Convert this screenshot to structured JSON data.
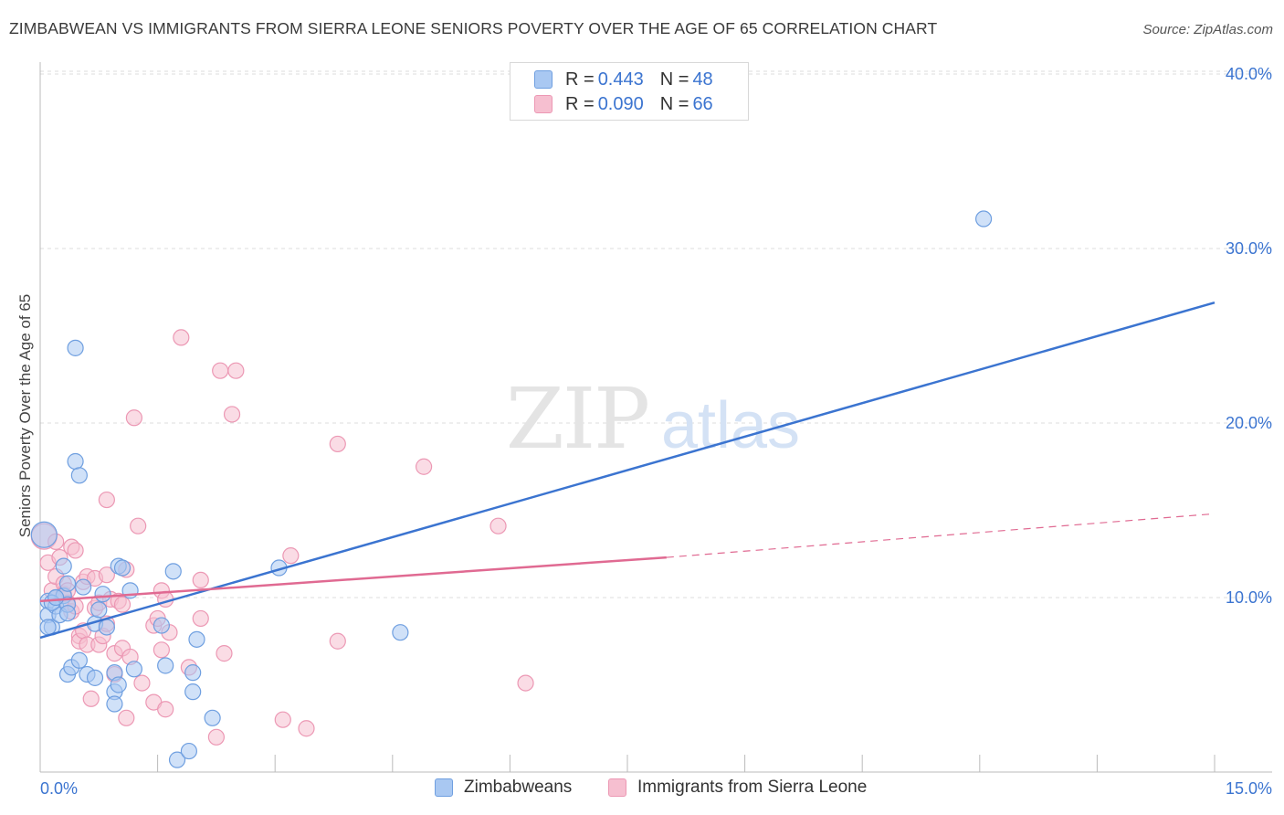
{
  "header": {
    "title": "ZIMBABWEAN VS IMMIGRANTS FROM SIERRA LEONE SENIORS POVERTY OVER THE AGE OF 65 CORRELATION CHART",
    "source": "Source: ZipAtlas.com"
  },
  "watermark": {
    "zip": "ZIP",
    "atlas": "atlas"
  },
  "colors": {
    "blue": "#3b74d0",
    "blue_fill": "#a9c8f2",
    "blue_stroke": "#6f9fe0",
    "pink": "#e06a92",
    "pink_fill": "#f6bfd0",
    "pink_stroke": "#ec98b4",
    "grid": "#dcdcdc",
    "axis_label": "#3b74d0"
  },
  "legend": {
    "rows": [
      {
        "r_label": "R =",
        "r_value": "0.443",
        "n_label": "N =",
        "n_value": "48"
      },
      {
        "r_label": "R =",
        "r_value": "0.090",
        "n_label": "N =",
        "n_value": "66"
      }
    ],
    "bottom": [
      "Zimbabweans",
      "Immigrants from Sierra Leone"
    ]
  },
  "chart_data": {
    "type": "scatter",
    "title": "ZIMBABWEAN VS IMMIGRANTS FROM SIERRA LEONE SENIORS POVERTY OVER THE AGE OF 65 CORRELATION CHART",
    "xlabel": "",
    "ylabel": "Seniors Poverty Over the Age of 65",
    "xlim": [
      0,
      15
    ],
    "ylim": [
      0,
      42
    ],
    "x_tick_labels": [
      "0.0%",
      "15.0%"
    ],
    "y_ticks": [
      10,
      20,
      30,
      40
    ],
    "y_tick_labels": [
      "10.0%",
      "20.0%",
      "30.0%",
      "40.0%"
    ],
    "grid": true,
    "series": [
      {
        "name": "Zimbabweans",
        "r": 0.443,
        "n": 48,
        "trend": {
          "x": [
            0.0,
            15.0
          ],
          "y": [
            7.7,
            26.9
          ]
        },
        "points": [
          [
            0.05,
            13.6
          ],
          [
            0.1,
            9.8
          ],
          [
            0.1,
            9.0
          ],
          [
            0.15,
            8.3
          ],
          [
            0.2,
            10.0
          ],
          [
            0.2,
            9.5
          ],
          [
            0.25,
            9.0
          ],
          [
            0.3,
            10.1
          ],
          [
            0.3,
            11.8
          ],
          [
            0.35,
            9.6
          ],
          [
            0.35,
            9.1
          ],
          [
            0.35,
            5.6
          ],
          [
            0.4,
            6.0
          ],
          [
            0.45,
            17.8
          ],
          [
            0.45,
            24.3
          ],
          [
            0.5,
            17.0
          ],
          [
            0.5,
            6.4
          ],
          [
            0.55,
            10.6
          ],
          [
            0.6,
            5.6
          ],
          [
            0.7,
            8.5
          ],
          [
            0.7,
            5.4
          ],
          [
            0.75,
            9.3
          ],
          [
            0.8,
            10.2
          ],
          [
            0.85,
            8.3
          ],
          [
            0.95,
            4.6
          ],
          [
            0.95,
            3.9
          ],
          [
            0.95,
            5.7
          ],
          [
            1.0,
            5.0
          ],
          [
            1.0,
            11.8
          ],
          [
            1.05,
            11.7
          ],
          [
            1.15,
            10.4
          ],
          [
            1.2,
            5.9
          ],
          [
            1.55,
            8.4
          ],
          [
            1.6,
            6.1
          ],
          [
            1.7,
            11.5
          ],
          [
            1.75,
            0.7
          ],
          [
            1.9,
            1.2
          ],
          [
            1.95,
            4.6
          ],
          [
            1.95,
            5.7
          ],
          [
            2.0,
            7.6
          ],
          [
            2.2,
            3.1
          ],
          [
            3.05,
            11.7
          ],
          [
            4.6,
            8.0
          ],
          [
            12.05,
            31.7
          ],
          [
            0.1,
            8.3
          ],
          [
            0.15,
            9.7
          ],
          [
            0.2,
            10.0
          ],
          [
            0.35,
            10.8
          ]
        ]
      },
      {
        "name": "Immigrants from Sierra Leone",
        "r": 0.09,
        "n": 66,
        "trend": {
          "x": [
            0.0,
            8.0
          ],
          "y": [
            9.8,
            12.3
          ]
        },
        "trend_dashed": {
          "x": [
            8.0,
            15.0
          ],
          "y": [
            12.3,
            14.8
          ]
        },
        "points": [
          [
            0.05,
            13.5
          ],
          [
            0.1,
            12.0
          ],
          [
            0.15,
            10.4
          ],
          [
            0.2,
            11.2
          ],
          [
            0.25,
            12.3
          ],
          [
            0.3,
            10.8
          ],
          [
            0.3,
            10.2
          ],
          [
            0.35,
            9.7
          ],
          [
            0.4,
            12.9
          ],
          [
            0.4,
            9.2
          ],
          [
            0.45,
            12.7
          ],
          [
            0.45,
            9.5
          ],
          [
            0.5,
            7.8
          ],
          [
            0.5,
            7.5
          ],
          [
            0.55,
            10.9
          ],
          [
            0.55,
            8.1
          ],
          [
            0.6,
            11.2
          ],
          [
            0.6,
            7.3
          ],
          [
            0.65,
            4.2
          ],
          [
            0.7,
            11.1
          ],
          [
            0.7,
            9.4
          ],
          [
            0.75,
            9.7
          ],
          [
            0.75,
            7.3
          ],
          [
            0.8,
            7.8
          ],
          [
            0.85,
            11.3
          ],
          [
            0.85,
            8.5
          ],
          [
            0.85,
            15.6
          ],
          [
            0.9,
            9.9
          ],
          [
            0.95,
            5.6
          ],
          [
            0.95,
            6.8
          ],
          [
            1.0,
            9.8
          ],
          [
            1.05,
            9.6
          ],
          [
            1.05,
            7.1
          ],
          [
            1.1,
            3.1
          ],
          [
            1.1,
            11.6
          ],
          [
            1.15,
            6.6
          ],
          [
            1.2,
            20.3
          ],
          [
            1.25,
            14.1
          ],
          [
            1.3,
            5.1
          ],
          [
            1.45,
            8.4
          ],
          [
            1.45,
            4.0
          ],
          [
            1.5,
            8.8
          ],
          [
            1.55,
            7.0
          ],
          [
            1.55,
            10.4
          ],
          [
            1.6,
            9.9
          ],
          [
            1.6,
            3.6
          ],
          [
            1.65,
            8.0
          ],
          [
            1.8,
            24.9
          ],
          [
            1.9,
            6.0
          ],
          [
            2.05,
            8.8
          ],
          [
            2.05,
            11.0
          ],
          [
            2.25,
            2.0
          ],
          [
            2.3,
            23.0
          ],
          [
            2.35,
            6.8
          ],
          [
            2.45,
            20.5
          ],
          [
            2.5,
            23.0
          ],
          [
            3.1,
            3.0
          ],
          [
            3.2,
            12.4
          ],
          [
            3.4,
            2.5
          ],
          [
            3.8,
            7.5
          ],
          [
            3.8,
            18.8
          ],
          [
            4.9,
            17.5
          ],
          [
            5.85,
            14.1
          ],
          [
            6.2,
            5.1
          ],
          [
            0.2,
            13.2
          ],
          [
            0.35,
            10.4
          ]
        ]
      }
    ]
  }
}
